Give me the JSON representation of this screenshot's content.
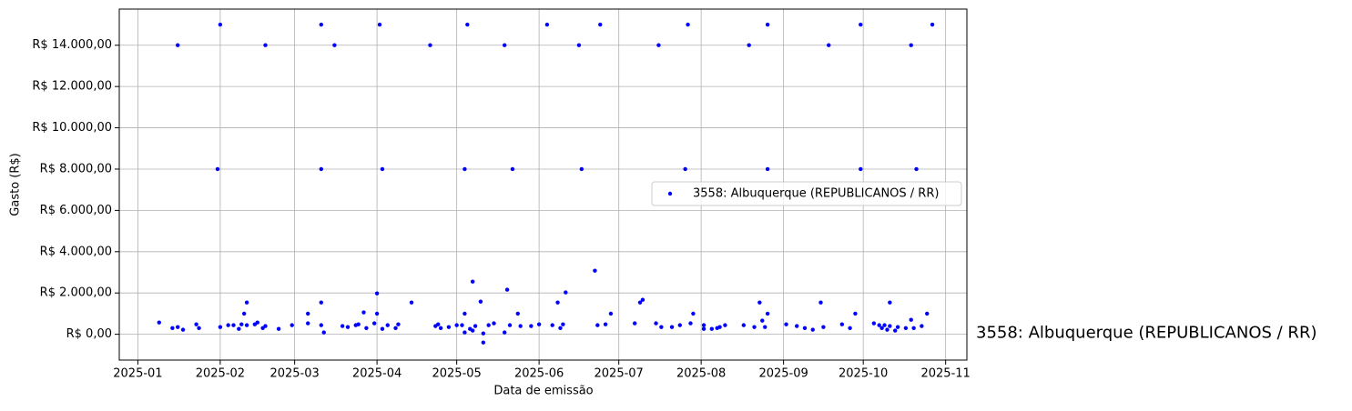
{
  "chart_data": {
    "type": "scatter",
    "xlabel": "Data de emissão",
    "ylabel": "Gasto (R$)",
    "xlim": [
      "2024-12-25",
      "2025-11-09"
    ],
    "xticks": [
      {
        "value": "2025-01-01",
        "label": "2025-01"
      },
      {
        "value": "2025-02-01",
        "label": "2025-02"
      },
      {
        "value": "2025-03-01",
        "label": "2025-03"
      },
      {
        "value": "2025-04-01",
        "label": "2025-04"
      },
      {
        "value": "2025-05-01",
        "label": "2025-05"
      },
      {
        "value": "2025-06-01",
        "label": "2025-06"
      },
      {
        "value": "2025-07-01",
        "label": "2025-07"
      },
      {
        "value": "2025-08-01",
        "label": "2025-08"
      },
      {
        "value": "2025-09-01",
        "label": "2025-09"
      },
      {
        "value": "2025-10-01",
        "label": "2025-10"
      },
      {
        "value": "2025-11-01",
        "label": "2025-11"
      }
    ],
    "ylim": [
      -1250,
      15750
    ],
    "yticks": [
      {
        "value": 0,
        "label": "R$ 0,00"
      },
      {
        "value": 2000,
        "label": "R$ 2.000,00"
      },
      {
        "value": 4000,
        "label": "R$ 4.000,00"
      },
      {
        "value": 6000,
        "label": "R$ 6.000,00"
      },
      {
        "value": 8000,
        "label": "R$ 8.000,00"
      },
      {
        "value": 10000,
        "label": "R$ 10.000,00"
      },
      {
        "value": 12000,
        "label": "R$ 12.000,00"
      },
      {
        "value": 14000,
        "label": "R$ 14.000,00"
      }
    ],
    "grid": true,
    "legend": "center right",
    "series": [
      {
        "name": "3558: Albuquerque (REPUBLICANOS / RR)",
        "color": "#0000ff",
        "x": [
          "2025-02-01",
          "2025-03-11",
          "2025-04-02",
          "2025-05-05",
          "2025-06-04",
          "2025-06-24",
          "2025-07-27",
          "2025-08-26",
          "2025-09-30",
          "2025-10-27",
          "2025-01-16",
          "2025-02-18",
          "2025-03-16",
          "2025-04-21",
          "2025-05-19",
          "2025-06-16",
          "2025-07-16",
          "2025-08-19",
          "2025-09-18",
          "2025-10-19",
          "2025-01-31",
          "2025-03-11",
          "2025-04-03",
          "2025-05-04",
          "2025-05-22",
          "2025-06-17",
          "2025-07-26",
          "2025-08-26",
          "2025-09-30",
          "2025-10-21",
          "2025-01-09",
          "2025-01-14",
          "2025-01-16",
          "2025-01-18",
          "2025-01-23",
          "2025-01-24",
          "2025-02-01",
          "2025-02-04",
          "2025-02-06",
          "2025-02-08",
          "2025-02-09",
          "2025-02-10",
          "2025-02-11",
          "2025-02-11",
          "2025-02-14",
          "2025-02-15",
          "2025-02-17",
          "2025-02-18",
          "2025-02-23",
          "2025-02-28",
          "2025-03-06",
          "2025-03-06",
          "2025-03-11",
          "2025-03-11",
          "2025-03-12",
          "2025-03-19",
          "2025-03-21",
          "2025-03-24",
          "2025-03-25",
          "2025-03-27",
          "2025-03-28",
          "2025-03-31",
          "2025-04-01",
          "2025-04-01",
          "2025-04-03",
          "2025-04-05",
          "2025-04-08",
          "2025-04-09",
          "2025-04-14",
          "2025-04-23",
          "2025-04-24",
          "2025-04-25",
          "2025-04-28",
          "2025-05-01",
          "2025-05-03",
          "2025-05-04",
          "2025-05-04",
          "2025-05-06",
          "2025-05-07",
          "2025-05-07",
          "2025-05-08",
          "2025-05-10",
          "2025-05-11",
          "2025-05-11",
          "2025-05-13",
          "2025-05-15",
          "2025-05-19",
          "2025-05-20",
          "2025-05-21",
          "2025-05-24",
          "2025-05-25",
          "2025-05-29",
          "2025-06-01",
          "2025-06-06",
          "2025-06-08",
          "2025-06-09",
          "2025-06-10",
          "2025-06-11",
          "2025-06-22",
          "2025-06-23",
          "2025-06-26",
          "2025-06-28",
          "2025-07-07",
          "2025-07-09",
          "2025-07-10",
          "2025-07-15",
          "2025-07-17",
          "2025-07-21",
          "2025-07-24",
          "2025-07-28",
          "2025-07-29",
          "2025-08-02",
          "2025-08-02",
          "2025-08-05",
          "2025-08-07",
          "2025-08-08",
          "2025-08-10",
          "2025-08-17",
          "2025-08-21",
          "2025-08-23",
          "2025-08-24",
          "2025-08-25",
          "2025-08-26",
          "2025-09-02",
          "2025-09-06",
          "2025-09-09",
          "2025-09-12",
          "2025-09-15",
          "2025-09-16",
          "2025-09-23",
          "2025-09-26",
          "2025-09-28",
          "2025-10-05",
          "2025-10-07",
          "2025-10-08",
          "2025-10-09",
          "2025-10-10",
          "2025-10-11",
          "2025-10-11",
          "2025-10-13",
          "2025-10-14",
          "2025-10-17",
          "2025-10-19",
          "2025-10-20",
          "2025-10-23",
          "2025-10-25"
        ],
        "values": [
          15000,
          15000,
          15000,
          15000,
          15000,
          15000,
          15000,
          15000,
          15000,
          15000,
          14000,
          14000,
          14000,
          14000,
          14000,
          14000,
          14000,
          14000,
          14000,
          14000,
          8000,
          8000,
          8000,
          8000,
          8000,
          8000,
          8000,
          8000,
          8000,
          8000,
          570,
          300,
          350,
          220,
          480,
          300,
          350,
          440,
          440,
          260,
          480,
          1000,
          1540,
          440,
          480,
          570,
          300,
          400,
          260,
          440,
          1000,
          530,
          440,
          1540,
          90,
          400,
          350,
          440,
          480,
          1060,
          300,
          530,
          1000,
          1980,
          260,
          440,
          300,
          480,
          1540,
          400,
          480,
          300,
          350,
          440,
          440,
          1000,
          90,
          260,
          2550,
          180,
          400,
          1580,
          40,
          -400,
          440,
          530,
          90,
          2160,
          440,
          1000,
          400,
          400,
          480,
          440,
          1540,
          300,
          480,
          2030,
          3080,
          440,
          480,
          1000,
          530,
          1540,
          1670,
          530,
          350,
          350,
          440,
          530,
          1000,
          440,
          260,
          260,
          300,
          350,
          440,
          440,
          350,
          1540,
          660,
          350,
          1000,
          480,
          400,
          300,
          220,
          1540,
          350,
          480,
          300,
          1000,
          530,
          440,
          300,
          440,
          220,
          1540,
          400,
          180,
          350,
          300,
          700,
          300,
          400,
          1000
        ]
      }
    ],
    "annotations": [
      {
        "text": "3558: Albuquerque (REPUBLICANOS / RR)",
        "color": "#0000ff"
      }
    ]
  }
}
